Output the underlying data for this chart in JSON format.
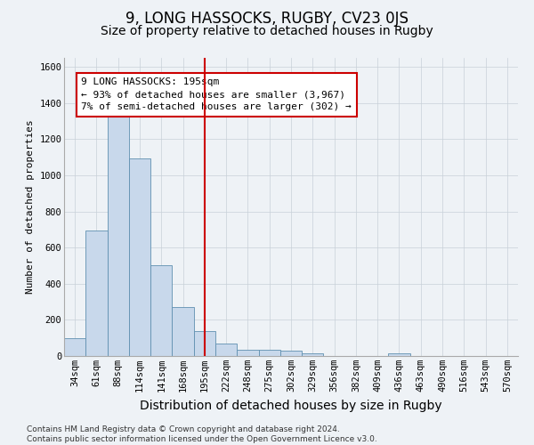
{
  "title": "9, LONG HASSOCKS, RUGBY, CV23 0JS",
  "subtitle": "Size of property relative to detached houses in Rugby",
  "xlabel": "Distribution of detached houses by size in Rugby",
  "ylabel": "Number of detached properties",
  "footer": "Contains HM Land Registry data © Crown copyright and database right 2024.\nContains public sector information licensed under the Open Government Licence v3.0.",
  "categories": [
    "34sqm",
    "61sqm",
    "88sqm",
    "114sqm",
    "141sqm",
    "168sqm",
    "195sqm",
    "222sqm",
    "248sqm",
    "275sqm",
    "302sqm",
    "329sqm",
    "356sqm",
    "382sqm",
    "409sqm",
    "436sqm",
    "463sqm",
    "490sqm",
    "516sqm",
    "543sqm",
    "570sqm"
  ],
  "values": [
    100,
    695,
    1340,
    1095,
    500,
    270,
    140,
    70,
    35,
    35,
    30,
    15,
    0,
    0,
    0,
    15,
    0,
    0,
    0,
    0,
    0
  ],
  "bar_color": "#c8d8eb",
  "bar_edge_color": "#6090b0",
  "vline_x_idx": 6,
  "vline_color": "#cc0000",
  "annotation_text": "9 LONG HASSOCKS: 195sqm\n← 93% of detached houses are smaller (3,967)\n7% of semi-detached houses are larger (302) →",
  "annotation_box_color": "white",
  "annotation_box_edge_color": "#cc0000",
  "ylim": [
    0,
    1650
  ],
  "yticks": [
    0,
    200,
    400,
    600,
    800,
    1000,
    1200,
    1400,
    1600
  ],
  "grid_color": "#c8d0d8",
  "background_color": "#eef2f6",
  "title_fontsize": 12,
  "subtitle_fontsize": 10,
  "xlabel_fontsize": 10,
  "ylabel_fontsize": 8,
  "tick_fontsize": 7.5,
  "annot_fontsize": 8,
  "footer_fontsize": 6.5
}
